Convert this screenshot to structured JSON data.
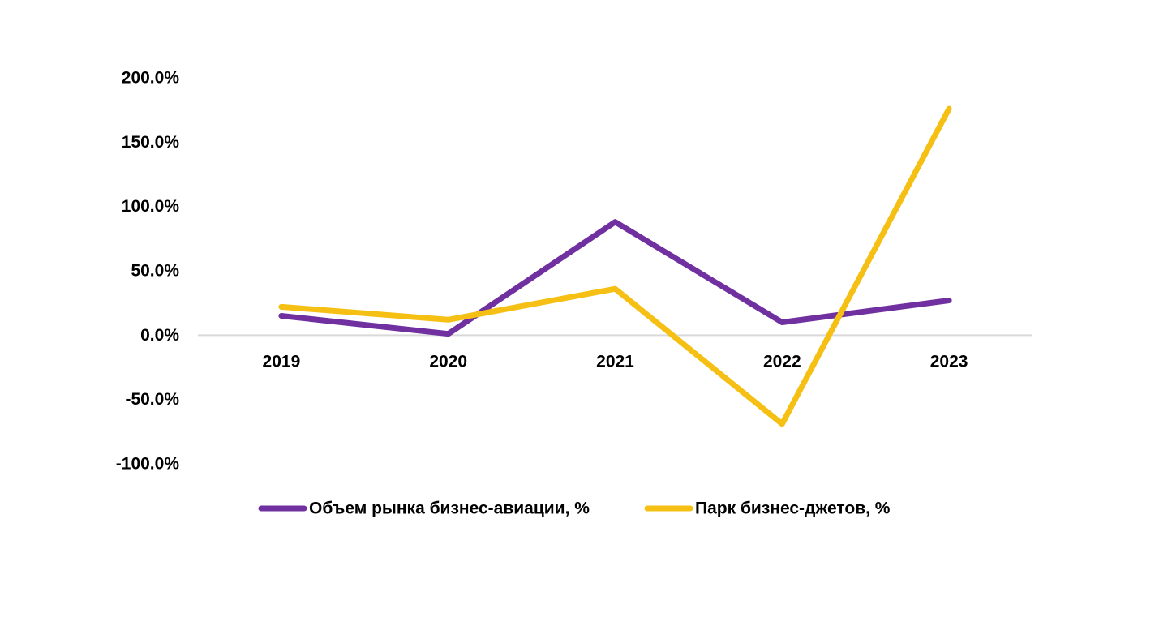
{
  "chart_data": {
    "type": "line",
    "title": "",
    "xlabel": "",
    "ylabel": "",
    "categories": [
      "2019",
      "2020",
      "2021",
      "2022",
      "2023"
    ],
    "y_ticks": [
      "200.0%",
      "150.0%",
      "100.0%",
      "50.0%",
      "0.0%",
      "-50.0%",
      "-100.0%"
    ],
    "ylim": [
      -100,
      200
    ],
    "grid": false,
    "legend_position": "bottom",
    "series": [
      {
        "name": "Объем рынка бизнес-авиации, %",
        "color": "#7030A0",
        "values": [
          15,
          1,
          88,
          10,
          27
        ]
      },
      {
        "name": "Парк бизнес-джетов, %",
        "color": "#F5C013",
        "values": [
          22,
          12,
          36,
          -69,
          176
        ]
      }
    ]
  }
}
